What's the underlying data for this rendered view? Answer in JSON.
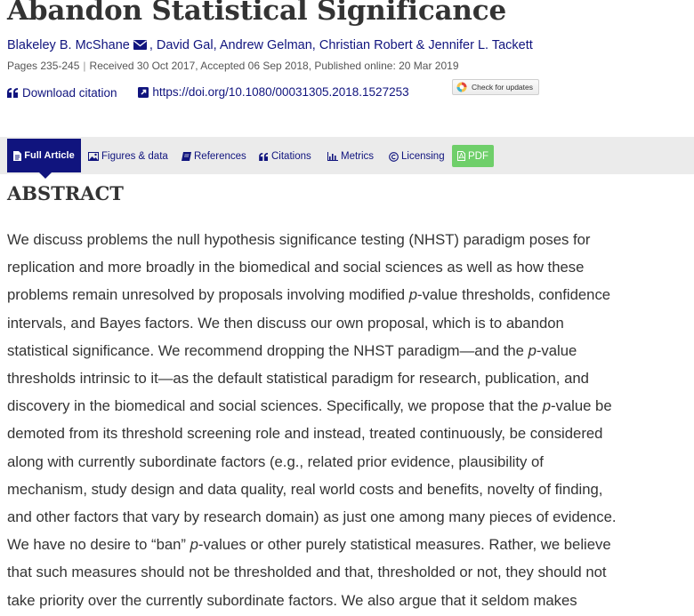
{
  "article": {
    "title": "Abandon Statistical Significance",
    "authors": [
      {
        "name": "Blakeley B. McShane",
        "sep": ", "
      },
      {
        "name": "David Gal",
        "sep": ", "
      },
      {
        "name": "Andrew Gelman",
        "sep": ", "
      },
      {
        "name": "Christian Robert",
        "sep": " & "
      },
      {
        "name": "Jennifer L. Tackett",
        "sep": ""
      }
    ],
    "meta": {
      "pages": "Pages 235-245",
      "received": "Received 30 Oct 2017, Accepted 06 Sep 2018, Published online: 20 Mar 2019"
    },
    "download_citation": "Download citation",
    "doi_link": "https://doi.org/10.1080/00031305.2018.1527253",
    "check_updates": "Check for updates"
  },
  "tabs": [
    {
      "label": "Full Article",
      "icon": "document-icon"
    },
    {
      "label": "Figures & data",
      "icon": "image-icon"
    },
    {
      "label": "References",
      "icon": "book-icon"
    },
    {
      "label": "Citations",
      "icon": "quote-icon"
    },
    {
      "label": "Metrics",
      "icon": "bar-chart-icon"
    },
    {
      "label": "Licensing",
      "icon": "copyright-icon"
    },
    {
      "label": "PDF",
      "icon": "pdf-icon"
    }
  ],
  "abstract": {
    "heading": "ABSTRACT",
    "lines": [
      [
        {
          "t": "We discuss problems the null hypothesis significance testing (NHST) paradigm poses for"
        }
      ],
      [
        {
          "t": "replication and more broadly in the biomedical and social sciences as well as how these"
        }
      ],
      [
        {
          "t": "problems remain unresolved by proposals involving modified "
        },
        {
          "t": "p",
          "i": true
        },
        {
          "t": "-value thresholds, confidence"
        }
      ],
      [
        {
          "t": "intervals, and Bayes factors. We then discuss our own proposal, which is to abandon"
        }
      ],
      [
        {
          "t": "statistical significance. We recommend dropping the NHST paradigm—and the "
        },
        {
          "t": "p",
          "i": true
        },
        {
          "t": "-value"
        }
      ],
      [
        {
          "t": "thresholds intrinsic to it—as the default statistical paradigm for research, publication, and"
        }
      ],
      [
        {
          "t": "discovery in the biomedical and social sciences. Specifically, we propose that the "
        },
        {
          "t": "p",
          "i": true
        },
        {
          "t": "-value be"
        }
      ],
      [
        {
          "t": "demoted from its threshold screening role and instead, treated continuously, be considered"
        }
      ],
      [
        {
          "t": "along with currently subordinate factors (e.g., related prior evidence, plausibility of"
        }
      ],
      [
        {
          "t": "mechanism, study design and data quality, real world costs and benefits, novelty of finding,"
        }
      ],
      [
        {
          "t": "and other factors that vary by research domain) as just one among many pieces of evidence."
        }
      ],
      [
        {
          "t": "We have no desire to “ban” "
        },
        {
          "t": "p",
          "i": true
        },
        {
          "t": "-values or other purely statistical measures. Rather, we believe"
        }
      ],
      [
        {
          "t": "that such measures should not be thresholded and that, thresholded or not, they should not"
        }
      ],
      [
        {
          "t": "take priority over the currently subordinate factors. We also argue that it seldom makes"
        }
      ]
    ]
  },
  "colors": {
    "link": "#10147e",
    "text": "#333333",
    "tab_bar": "#ebebeb",
    "pdf": "#6fcf6a"
  }
}
